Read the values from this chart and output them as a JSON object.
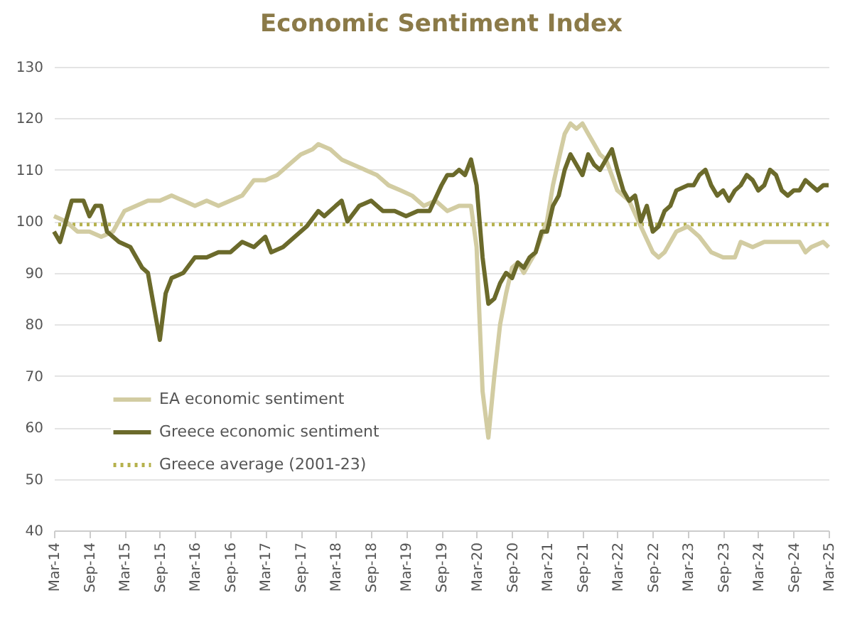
{
  "chart_data": {
    "type": "line",
    "title": "Economic Sentiment Index",
    "series": [
      {
        "name": "EA economic sentiment",
        "color": "#d2cca2",
        "x": [
          "2014-03",
          "2014-05",
          "2014-07",
          "2014-09",
          "2014-11",
          "2015-01",
          "2015-03",
          "2015-05",
          "2015-07",
          "2015-09",
          "2015-11",
          "2016-01",
          "2016-03",
          "2016-05",
          "2016-07",
          "2016-09",
          "2016-11",
          "2017-01",
          "2017-03",
          "2017-05",
          "2017-07",
          "2017-09",
          "2017-11",
          "2017-12",
          "2018-02",
          "2018-04",
          "2018-06",
          "2018-08",
          "2018-10",
          "2018-12",
          "2019-02",
          "2019-04",
          "2019-06",
          "2019-08",
          "2019-10",
          "2019-12",
          "2020-02",
          "2020-03",
          "2020-04",
          "2020-05",
          "2020-06",
          "2020-07",
          "2020-08",
          "2020-09",
          "2020-10",
          "2020-11",
          "2020-12",
          "2021-01",
          "2021-03",
          "2021-04",
          "2021-05",
          "2021-06",
          "2021-07",
          "2021-08",
          "2021-09",
          "2021-10",
          "2021-11",
          "2021-12",
          "2022-01",
          "2022-03",
          "2022-05",
          "2022-07",
          "2022-09",
          "2022-10",
          "2022-11",
          "2023-01",
          "2023-03",
          "2023-05",
          "2023-07",
          "2023-09",
          "2023-11",
          "2023-12",
          "2024-02",
          "2024-04",
          "2024-06",
          "2024-08",
          "2024-10",
          "2024-11",
          "2024-12",
          "2025-02",
          "2025-03"
        ],
        "values": [
          101,
          100,
          98,
          98,
          97,
          98,
          102,
          103,
          104,
          104,
          105,
          104,
          103,
          104,
          103,
          104,
          105,
          108,
          108,
          109,
          111,
          113,
          114,
          115,
          114,
          112,
          111,
          110,
          109,
          107,
          106,
          105,
          103,
          104,
          102,
          103,
          103,
          95,
          67,
          58,
          70,
          80,
          86,
          91,
          92,
          90,
          92,
          94,
          100,
          107,
          112,
          117,
          119,
          118,
          119,
          117,
          115,
          113,
          112,
          106,
          104,
          99,
          94,
          93,
          94,
          98,
          99,
          97,
          94,
          93,
          93,
          96,
          95,
          96,
          96,
          96,
          96,
          94,
          95,
          96,
          95
        ]
      },
      {
        "name": "Greece economic sentiment",
        "color": "#6b6a2b",
        "x": [
          "2014-03",
          "2014-04",
          "2014-06",
          "2014-08",
          "2014-09",
          "2014-10",
          "2014-11",
          "2014-12",
          "2015-02",
          "2015-04",
          "2015-06",
          "2015-07",
          "2015-09",
          "2015-10",
          "2015-11",
          "2016-01",
          "2016-03",
          "2016-05",
          "2016-07",
          "2016-09",
          "2016-11",
          "2017-01",
          "2017-03",
          "2017-04",
          "2017-06",
          "2017-08",
          "2017-10",
          "2017-12",
          "2018-01",
          "2018-03",
          "2018-04",
          "2018-05",
          "2018-07",
          "2018-09",
          "2018-11",
          "2019-01",
          "2019-03",
          "2019-05",
          "2019-07",
          "2019-09",
          "2019-10",
          "2019-11",
          "2019-12",
          "2020-01",
          "2020-02",
          "2020-03",
          "2020-04",
          "2020-05",
          "2020-06",
          "2020-07",
          "2020-08",
          "2020-09",
          "2020-10",
          "2020-11",
          "2020-12",
          "2021-01",
          "2021-02",
          "2021-03",
          "2021-04",
          "2021-05",
          "2021-06",
          "2021-07",
          "2021-08",
          "2021-09",
          "2021-10",
          "2021-11",
          "2021-12",
          "2022-01",
          "2022-02",
          "2022-03",
          "2022-04",
          "2022-05",
          "2022-06",
          "2022-07",
          "2022-08",
          "2022-09",
          "2022-10",
          "2022-11",
          "2022-12",
          "2023-01",
          "2023-03",
          "2023-04",
          "2023-05",
          "2023-06",
          "2023-07",
          "2023-08",
          "2023-09",
          "2023-10",
          "2023-11",
          "2023-12",
          "2024-01",
          "2024-02",
          "2024-03",
          "2024-04",
          "2024-05",
          "2024-06",
          "2024-07",
          "2024-08",
          "2024-09",
          "2024-10",
          "2024-11",
          "2024-12",
          "2025-01",
          "2025-02",
          "2025-03"
        ],
        "values": [
          98,
          96,
          104,
          104,
          101,
          103,
          103,
          98,
          96,
          95,
          91,
          90,
          77,
          86,
          89,
          90,
          93,
          93,
          94,
          94,
          96,
          95,
          97,
          94,
          95,
          97,
          99,
          102,
          101,
          103,
          104,
          100,
          103,
          104,
          102,
          102,
          101,
          102,
          102,
          107,
          109,
          109,
          110,
          109,
          112,
          107,
          93,
          84,
          85,
          88,
          90,
          89,
          92,
          91,
          93,
          94,
          98,
          98,
          103,
          105,
          110,
          113,
          111,
          109,
          113,
          111,
          110,
          112,
          114,
          110,
          106,
          104,
          105,
          100,
          103,
          98,
          99,
          102,
          103,
          106,
          107,
          107,
          109,
          110,
          107,
          105,
          106,
          104,
          106,
          107,
          109,
          108,
          106,
          107,
          110,
          109,
          106,
          105,
          106,
          106,
          108,
          107,
          106,
          107,
          107
        ]
      }
    ],
    "ref_lines": [
      {
        "axis": "y",
        "value": 99.4,
        "label": "Greece average (2001-23)",
        "color": "#b5b14c",
        "line_style": "dotted"
      }
    ],
    "xlim": [
      "2014-03",
      "2025-03"
    ],
    "xticks": [
      {
        "value": "2014-03",
        "label": "Mar-14"
      },
      {
        "value": "2014-09",
        "label": "Sep-14"
      },
      {
        "value": "2015-03",
        "label": "Mar-15"
      },
      {
        "value": "2015-09",
        "label": "Sep-15"
      },
      {
        "value": "2016-03",
        "label": "Mar-16"
      },
      {
        "value": "2016-09",
        "label": "Sep-16"
      },
      {
        "value": "2017-03",
        "label": "Mar-17"
      },
      {
        "value": "2017-09",
        "label": "Sep-17"
      },
      {
        "value": "2018-03",
        "label": "Mar-18"
      },
      {
        "value": "2018-09",
        "label": "Sep-18"
      },
      {
        "value": "2019-03",
        "label": "Mar-19"
      },
      {
        "value": "2019-09",
        "label": "Sep-19"
      },
      {
        "value": "2020-03",
        "label": "Mar-20"
      },
      {
        "value": "2020-09",
        "label": "Sep-20"
      },
      {
        "value": "2021-03",
        "label": "Mar-21"
      },
      {
        "value": "2021-09",
        "label": "Sep-21"
      },
      {
        "value": "2022-03",
        "label": "Mar-22"
      },
      {
        "value": "2022-09",
        "label": "Sep-22"
      },
      {
        "value": "2023-03",
        "label": "Mar-23"
      },
      {
        "value": "2023-09",
        "label": "Sep-23"
      },
      {
        "value": "2024-03",
        "label": "Mar-24"
      },
      {
        "value": "2024-09",
        "label": "Sep-24"
      },
      {
        "value": "2025-03",
        "label": "Mar-25"
      }
    ],
    "ylim": [
      40,
      130
    ],
    "yticks": [
      40,
      50,
      60,
      70,
      80,
      90,
      100,
      110,
      120,
      130
    ],
    "grid": "y",
    "legend": "bottom left",
    "line_style": "solid"
  }
}
